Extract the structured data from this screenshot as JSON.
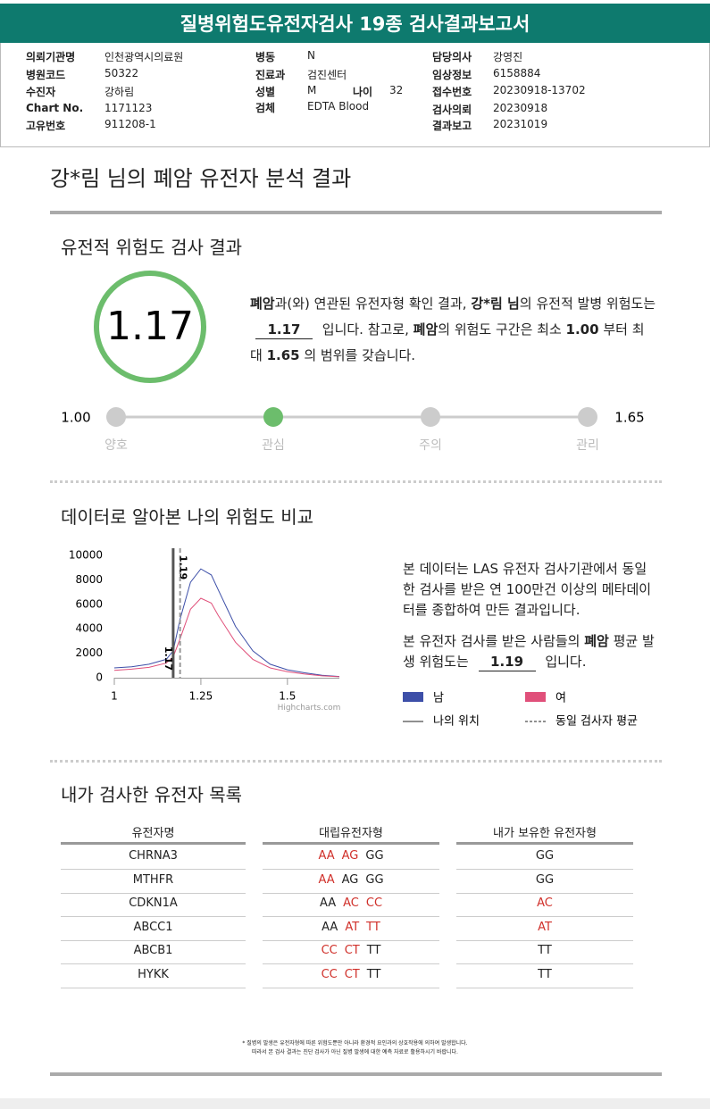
{
  "header": {
    "title": "질병위험도유전자검사 19종 검사결과보고서",
    "columns": [
      [
        {
          "label": "의뢰기관명",
          "value": "인천광역시의료원"
        },
        {
          "label": "병원코드",
          "value": "50322"
        },
        {
          "label": "수진자",
          "value": "강하림"
        },
        {
          "label": "Chart No.",
          "value": "1171123"
        },
        {
          "label": "고유번호",
          "value": "911208-1"
        }
      ],
      [
        {
          "label": "병동",
          "value": "N"
        },
        {
          "label": "진료과",
          "value": "검진센터"
        },
        {
          "label": "성별",
          "value": "M",
          "extra_label": "나이",
          "extra_value": "32"
        },
        {
          "label": "검체",
          "value": "EDTA Blood"
        }
      ],
      [
        {
          "label": "담당의사",
          "value": "강영진"
        },
        {
          "label": "임상정보",
          "value": "6158884"
        },
        {
          "label": "접수번호",
          "value": "20230918-13702"
        },
        {
          "label": "검사의뢰",
          "value": "20230918"
        },
        {
          "label": "결과보고",
          "value": "20231019"
        }
      ]
    ]
  },
  "summary": {
    "title": "강*림 님의 폐암 유전자 분석 결과"
  },
  "section1": {
    "title": "유전적 위험도 검사 결과",
    "score": "1.17",
    "score_color": "#6cbd6c",
    "paragraph": [
      {
        "text": "폐암",
        "style": "bold"
      },
      {
        "text": "과(와) 연관된 유전자형 확인 결과, "
      },
      {
        "text": "강*림 님",
        "style": "bold"
      },
      {
        "text": "의 유전적 발병 위험도는 "
      },
      {
        "text": "1.17",
        "style": "underline"
      },
      {
        "text": " 입니다. 참고로, "
      },
      {
        "text": "폐암",
        "style": "bold"
      },
      {
        "text": "의 위험도 구간은 최소 "
      },
      {
        "text": "1.00",
        "style": "bold"
      },
      {
        "text": " 부터 최대 "
      },
      {
        "text": "1.65",
        "style": "bold"
      },
      {
        "text": " 의 범위를 갖습니다."
      }
    ],
    "scale": {
      "min": "1.00",
      "max": "1.65",
      "levels": [
        "양호",
        "관심",
        "주의",
        "관리"
      ],
      "active": 1
    }
  },
  "chart_data": {
    "type": "line",
    "title": "데이터로 알아본 나의 위험도 비교",
    "x": [
      1,
      1.05,
      1.1,
      1.15,
      1.17,
      1.19,
      1.22,
      1.25,
      1.28,
      1.3,
      1.35,
      1.4,
      1.45,
      1.5,
      1.55,
      1.6,
      1.65
    ],
    "series": [
      {
        "name": "남",
        "color": "#3d4fa8",
        "values": [
          800,
          900,
          1100,
          1500,
          2200,
          4800,
          7800,
          8900,
          8400,
          7200,
          4200,
          2200,
          1100,
          650,
          400,
          200,
          100
        ]
      },
      {
        "name": "여",
        "color": "#e0507a",
        "values": [
          600,
          700,
          850,
          1200,
          1700,
          3200,
          5600,
          6500,
          6100,
          5100,
          2900,
          1500,
          800,
          500,
          300,
          150,
          80
        ]
      }
    ],
    "xlim": [
      1,
      1.65
    ],
    "xticks": [
      1,
      1.25,
      1.5
    ],
    "ylim": [
      0,
      10000
    ],
    "yticks": [
      0,
      2000,
      4000,
      6000,
      8000,
      10000
    ],
    "plot_lines": [
      {
        "name": "나의 위치",
        "value": 1.17,
        "dash": false
      },
      {
        "name": "동일 검사자 평균",
        "value": 1.19,
        "dash": true
      }
    ],
    "credit": "Highcharts.com",
    "paragraphs": [
      [
        {
          "text": "본 데이터는 LAS 유전자 검사기관에서 동일한 검사를 받은 연 100만건 이상의 메타데이터를 종합하여 만든 결과입니다."
        }
      ],
      [
        {
          "text": "본 유전자 검사를 받은 사람들의 "
        },
        {
          "text": "폐암",
          "style": "bold"
        },
        {
          "text": " 평균 발생 위험도는 "
        },
        {
          "text": "1.19",
          "style": "underline"
        },
        {
          "text": " 입니다."
        }
      ]
    ]
  },
  "table": {
    "title": "내가 검사한 유전자 목록",
    "risk_color": "#d0302a",
    "headers": [
      "유전자명",
      "대립유전자형",
      "내가 보유한 유전자형"
    ],
    "rows": [
      {
        "gene": "CHRNA3",
        "alleles": [
          "AA",
          "AG",
          "GG"
        ],
        "risk": [
          true,
          true,
          false
        ],
        "mine": "GG",
        "mine_risk": false
      },
      {
        "gene": "MTHFR",
        "alleles": [
          "AA",
          "AG",
          "GG"
        ],
        "risk": [
          true,
          false,
          false
        ],
        "mine": "GG",
        "mine_risk": false
      },
      {
        "gene": "CDKN1A",
        "alleles": [
          "AA",
          "AC",
          "CC"
        ],
        "risk": [
          false,
          true,
          true
        ],
        "mine": "AC",
        "mine_risk": true
      },
      {
        "gene": "ABCC1",
        "alleles": [
          "AA",
          "AT",
          "TT"
        ],
        "risk": [
          false,
          true,
          true
        ],
        "mine": "AT",
        "mine_risk": true
      },
      {
        "gene": "ABCB1",
        "alleles": [
          "CC",
          "CT",
          "TT"
        ],
        "risk": [
          true,
          true,
          false
        ],
        "mine": "TT",
        "mine_risk": false
      },
      {
        "gene": "HYKK",
        "alleles": [
          "CC",
          "CT",
          "TT"
        ],
        "risk": [
          true,
          true,
          false
        ],
        "mine": "TT",
        "mine_risk": false
      }
    ]
  },
  "footnote": [
    "* 질병의 발생은 유전자형에 따른 위험도뿐만 아니라 환경적 요인과의 상호작용에 의하여 발생합니다.",
    "따라서 본 검사 결과는 진단 검사가 아닌 질병 발생에 대한 예측 자료로 활용하시기 바랍니다."
  ]
}
